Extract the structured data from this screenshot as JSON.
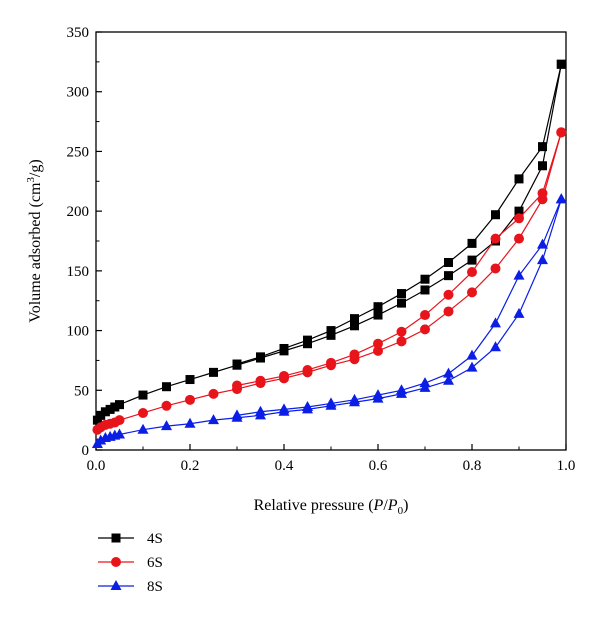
{
  "chart_data": {
    "type": "line",
    "xlabel": "Relative pressure (P/P0)",
    "ylabel": "Volume adsorbed (cm3/g)",
    "xlim": [
      0.0,
      1.0
    ],
    "ylim": [
      0,
      350
    ],
    "x_ticks": [
      "0.0",
      "0.2",
      "0.4",
      "0.6",
      "0.8",
      "1.0"
    ],
    "y_ticks": [
      "0",
      "50",
      "100",
      "150",
      "200",
      "250",
      "300",
      "350"
    ],
    "legend_position": "bottom-left, below the plot",
    "grid": false,
    "series": [
      {
        "name": "4S",
        "color": "#000000",
        "marker": "square",
        "adsorption": {
          "x": [
            0.003,
            0.01,
            0.02,
            0.03,
            0.04,
            0.05,
            0.1,
            0.15,
            0.2,
            0.25,
            0.3,
            0.35,
            0.4,
            0.45,
            0.5,
            0.55,
            0.6,
            0.65,
            0.7,
            0.75,
            0.8,
            0.85,
            0.9,
            0.95,
            0.99
          ],
          "y": [
            25,
            29,
            32,
            34,
            36,
            38,
            46,
            53,
            59,
            65,
            71,
            77,
            83,
            89,
            96,
            104,
            113,
            123,
            134,
            146,
            159,
            175,
            200,
            238,
            323
          ]
        },
        "desorption": {
          "x": [
            0.99,
            0.95,
            0.9,
            0.85,
            0.8,
            0.75,
            0.7,
            0.65,
            0.6,
            0.55,
            0.5,
            0.45,
            0.4,
            0.35,
            0.3
          ],
          "y": [
            323,
            254,
            227,
            197,
            173,
            157,
            143,
            131,
            120,
            110,
            100,
            92,
            85,
            78,
            72
          ]
        }
      },
      {
        "name": "6S",
        "color": "#e8141c",
        "marker": "circle",
        "adsorption": {
          "x": [
            0.003,
            0.01,
            0.02,
            0.03,
            0.04,
            0.05,
            0.1,
            0.15,
            0.2,
            0.25,
            0.3,
            0.35,
            0.4,
            0.45,
            0.5,
            0.55,
            0.6,
            0.65,
            0.7,
            0.75,
            0.8,
            0.85,
            0.9,
            0.95,
            0.99
          ],
          "y": [
            17,
            19,
            21,
            22,
            23,
            25,
            31,
            37,
            42,
            47,
            51,
            56,
            60,
            65,
            71,
            76,
            83,
            91,
            101,
            116,
            132,
            152,
            177,
            210,
            266
          ]
        },
        "desorption": {
          "x": [
            0.99,
            0.95,
            0.9,
            0.85,
            0.8,
            0.75,
            0.7,
            0.65,
            0.6,
            0.55,
            0.5,
            0.45,
            0.4,
            0.35,
            0.3
          ],
          "y": [
            266,
            215,
            194,
            177,
            149,
            130,
            113,
            99,
            89,
            80,
            73,
            67,
            62,
            58,
            54
          ]
        }
      },
      {
        "name": "8S",
        "color": "#0a1ee6",
        "marker": "triangle",
        "adsorption": {
          "x": [
            0.003,
            0.01,
            0.02,
            0.03,
            0.04,
            0.05,
            0.1,
            0.15,
            0.2,
            0.25,
            0.3,
            0.35,
            0.4,
            0.45,
            0.5,
            0.55,
            0.6,
            0.65,
            0.7,
            0.75,
            0.8,
            0.85,
            0.9,
            0.95,
            0.99
          ],
          "y": [
            5,
            8,
            10,
            11,
            12,
            13,
            17,
            20,
            22,
            25,
            27,
            29,
            32,
            34,
            37,
            40,
            43,
            47,
            52,
            58,
            69,
            86,
            114,
            159,
            210
          ]
        },
        "desorption": {
          "x": [
            0.99,
            0.95,
            0.9,
            0.85,
            0.8,
            0.75,
            0.7,
            0.65,
            0.6,
            0.55,
            0.5,
            0.45,
            0.4,
            0.35,
            0.3
          ],
          "y": [
            210,
            172,
            146,
            106,
            79,
            64,
            56,
            50,
            46,
            42,
            39,
            36,
            34,
            32,
            29
          ]
        }
      }
    ]
  }
}
